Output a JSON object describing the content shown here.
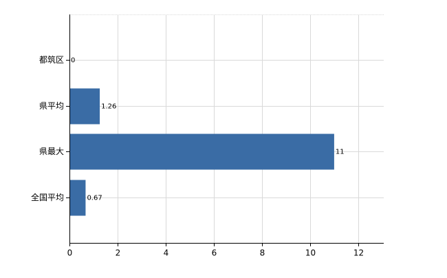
{
  "chart_data": {
    "type": "bar",
    "orientation": "horizontal",
    "categories": [
      "都筑区",
      "県平均",
      "県最大",
      "全国平均"
    ],
    "values": [
      0,
      1.26,
      11,
      0.67
    ],
    "color": "#3a6ca5",
    "xlim": [
      0,
      13.06
    ],
    "xticks": [
      0,
      2,
      4,
      6,
      8,
      10,
      12
    ],
    "grid": true
  }
}
